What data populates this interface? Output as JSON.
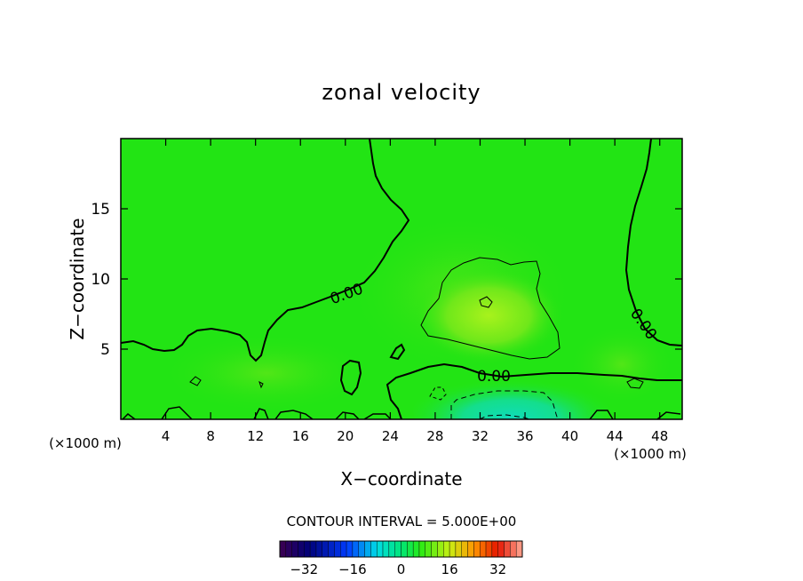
{
  "chart_data": {
    "type": "heatmap",
    "title": "zonal velocity",
    "xlabel": "X−coordinate",
    "ylabel": "Z−coordinate",
    "x_unit_left": "(×1000 m)",
    "x_unit_right": "(×1000 m)",
    "xlim": [
      0,
      50
    ],
    "ylim": [
      0,
      20
    ],
    "x_ticks": [
      4,
      8,
      12,
      16,
      20,
      24,
      28,
      32,
      36,
      40,
      44,
      48
    ],
    "x_tick_labels": [
      "4",
      "8",
      "12",
      "16",
      "20",
      "24",
      "28",
      "32",
      "36",
      "40",
      "44",
      "48"
    ],
    "y_ticks": [
      5,
      10,
      15
    ],
    "y_tick_labels": [
      "5",
      "10",
      "15"
    ],
    "contour_interval_text": "CONTOUR INTERVAL = 5.000E+00",
    "contour_interval": 5.0,
    "contour_labels": [
      "0.00",
      "0.00",
      "0.00"
    ],
    "colorbar": {
      "vmin": -40,
      "vmax": 40,
      "ticks": [
        -32,
        -16,
        0,
        16,
        32
      ],
      "tick_labels": [
        "−32",
        "−16",
        "0",
        "16",
        "32"
      ]
    },
    "field_description_colors": {
      "background": "#22e414",
      "positive_core": "#9ef21a",
      "negative_core": "#12dfa8"
    },
    "features": [
      {
        "name": "positive-jet",
        "x_center": 34,
        "z_center": 7,
        "value_approx": 5
      },
      {
        "name": "negative-surface-flow",
        "x_center": 34,
        "z_center": 1,
        "value_approx": -10
      }
    ]
  }
}
